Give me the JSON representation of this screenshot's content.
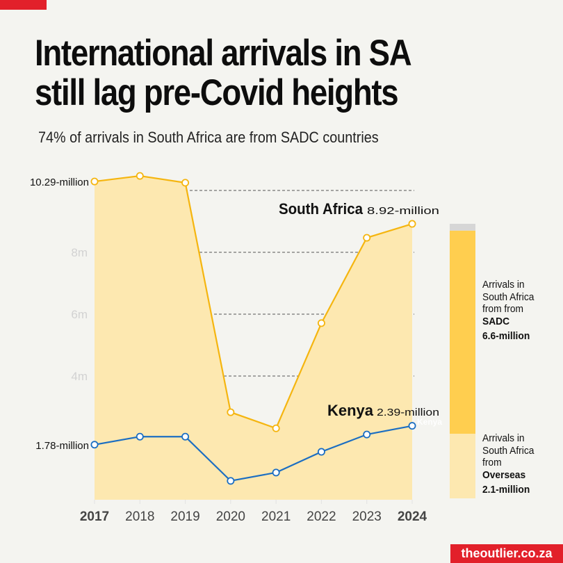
{
  "header": {
    "title_line1": "International arrivals in SA",
    "title_line2": "still lag pre-Covid heights",
    "subtitle": "74% of arrivals in South Africa are from SADC countries"
  },
  "footer": {
    "brand": "theoutlier.co.za"
  },
  "colors": {
    "accent_red": "#e2202a",
    "sa_line": "#f5b50f",
    "sa_fill": "#fde8b0",
    "kenya_line": "#1b6ec2",
    "sadc_bar": "#ffce4f",
    "overseas_bar": "#fde8b0",
    "bar_remainder": "#d6d6d6",
    "background": "#f4f4f0"
  },
  "legend": {
    "sadc": {
      "line1": "Arrivals in",
      "line2": "South Africa",
      "line3": "from from",
      "name": "SADC",
      "value": "6.6-million"
    },
    "overseas": {
      "line1": "Arrivals in",
      "line2": "South Africa",
      "line3": "from",
      "name": "Overseas",
      "value": "2.1-million"
    }
  },
  "chart_data": {
    "type": "line",
    "title": "International arrivals in SA still lag pre-Covid heights",
    "subtitle": "74% of arrivals in South Africa are from SADC countries",
    "xlabel": "",
    "ylabel": "",
    "x": [
      "2017",
      "2018",
      "2019",
      "2020",
      "2021",
      "2022",
      "2023",
      "2024"
    ],
    "bold_x": [
      "2017",
      "2024"
    ],
    "ylim": [
      0,
      10.5
    ],
    "y_ticks": [
      {
        "value": 4,
        "label": "4m"
      },
      {
        "value": 6,
        "label": "6m"
      },
      {
        "value": 8,
        "label": "8m"
      },
      {
        "value": 10,
        "label": ""
      }
    ],
    "grid": true,
    "series": [
      {
        "name": "South Africa",
        "values": [
          10.29,
          10.47,
          10.25,
          2.83,
          2.31,
          5.71,
          8.47,
          8.92
        ],
        "area": true,
        "start_label": "10.29-million",
        "end_label": "8.92-million"
      },
      {
        "name": "Kenya",
        "values": [
          1.78,
          2.04,
          2.04,
          0.61,
          0.88,
          1.55,
          2.11,
          2.39
        ],
        "area": false,
        "start_label": "1.78-million",
        "end_label": "2.39-million"
      }
    ],
    "stacked_bar": {
      "year": "2024",
      "total": 8.92,
      "segments": [
        {
          "name": "Overseas",
          "value": 2.1,
          "label": "2.1-million"
        },
        {
          "name": "SADC",
          "value": 6.6,
          "label": "6.6-million"
        },
        {
          "name": "Other",
          "value": 0.22,
          "label": ""
        }
      ]
    },
    "legend_position": "right"
  }
}
